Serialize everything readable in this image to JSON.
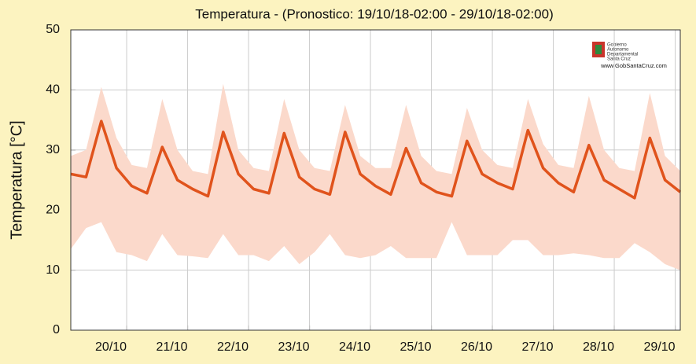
{
  "chart_data": {
    "type": "line",
    "title": "Temperatura - (Pronostico: 19/10/18-02:00 - 29/10/18-02:00)",
    "y_label": "Temperatura [°C]",
    "logo": {
      "lines": [
        "Gobierno",
        "Autonomo",
        "Departamental",
        "Santa Cruz"
      ],
      "url": "www.GobSantaCruz.com"
    },
    "x": [
      19.083,
      19.333,
      19.583,
      19.833,
      20.083,
      20.333,
      20.583,
      20.833,
      21.083,
      21.333,
      21.583,
      21.833,
      22.083,
      22.333,
      22.583,
      22.833,
      23.083,
      23.333,
      23.583,
      23.833,
      24.083,
      24.333,
      24.583,
      24.833,
      25.083,
      25.333,
      25.583,
      25.833,
      26.083,
      26.333,
      26.583,
      26.833,
      27.083,
      27.333,
      27.583,
      27.833,
      28.083,
      28.333,
      28.583,
      28.833,
      29.083
    ],
    "values": [
      26,
      25.5,
      34.8,
      27,
      24,
      22.8,
      30.5,
      25,
      23.5,
      22.3,
      33,
      26,
      23.5,
      22.8,
      32.8,
      25.5,
      23.5,
      22.6,
      33,
      26,
      24,
      22.6,
      30.3,
      24.5,
      23,
      22.3,
      31.5,
      26,
      24.5,
      23.5,
      33.3,
      27,
      24.5,
      23,
      30.8,
      25,
      23.5,
      22,
      32,
      25,
      23
    ],
    "band_upper": [
      29,
      30,
      40.5,
      32,
      27.5,
      27,
      38.5,
      30,
      26.5,
      26,
      41,
      30,
      27,
      26.5,
      38.5,
      30,
      27,
      26.5,
      37.5,
      29,
      27,
      27,
      37.5,
      29,
      26.5,
      26,
      37,
      30,
      27.5,
      27,
      38.5,
      31,
      27.5,
      27,
      39,
      30,
      27,
      26.5,
      39.5,
      29,
      26.5
    ],
    "band_lower": [
      13.5,
      17,
      18,
      13,
      12.5,
      11.5,
      16,
      12.5,
      12.3,
      12,
      16,
      12.5,
      12.5,
      11.5,
      14,
      11,
      13,
      16,
      12.5,
      12,
      12.5,
      14,
      12,
      12,
      12,
      18,
      12.5,
      12.5,
      12.5,
      15,
      15,
      12.5,
      12.5,
      12.8,
      12.5,
      12,
      12,
      14.5,
      13,
      11,
      10
    ],
    "color": "#e0531c",
    "band_color": "#fbd9cb",
    "xlim": [
      19.083,
      29.083
    ],
    "xticks": [
      {
        "value": 20,
        "label": "20/10"
      },
      {
        "value": 21,
        "label": "21/10"
      },
      {
        "value": 22,
        "label": "22/10"
      },
      {
        "value": 23,
        "label": "23/10"
      },
      {
        "value": 24,
        "label": "24/10"
      },
      {
        "value": 25,
        "label": "25/10"
      },
      {
        "value": 26,
        "label": "26/10"
      },
      {
        "value": 27,
        "label": "27/10"
      },
      {
        "value": 28,
        "label": "28/10"
      },
      {
        "value": 29,
        "label": "29/10"
      }
    ],
    "ylim": [
      0,
      50
    ],
    "yticks": [
      0,
      10,
      20,
      30,
      40,
      50
    ],
    "grid": true
  }
}
